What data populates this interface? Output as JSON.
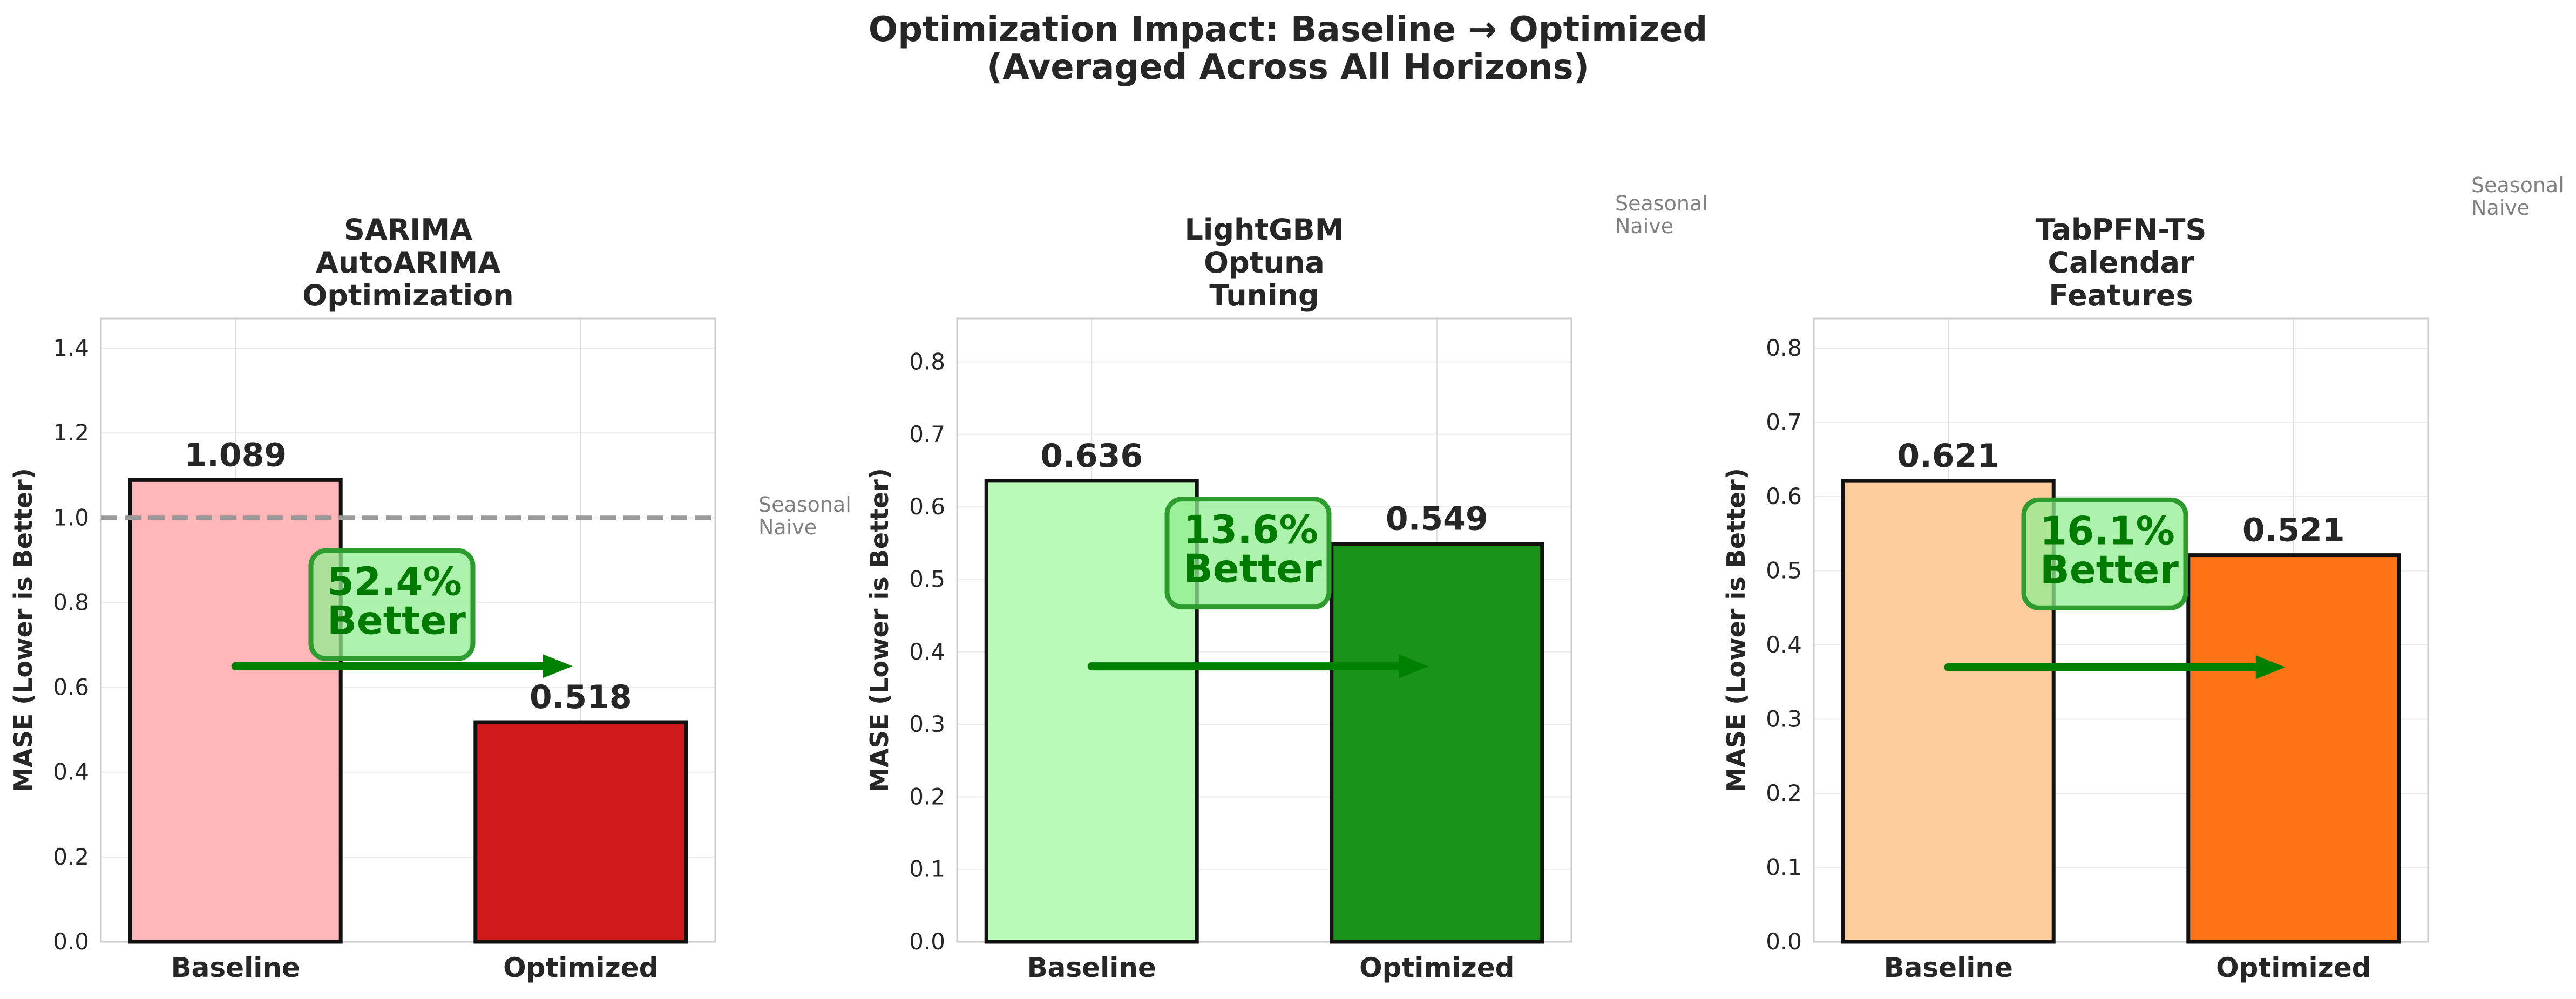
{
  "title_lines": [
    "Optimization Impact: Baseline → Optimized",
    "(Averaged Across All Horizons)"
  ],
  "ylabel": "MASE (Lower is Better)",
  "reference": {
    "label_lines": [
      "Seasonal",
      "Naive"
    ],
    "value": 1.0,
    "color": "#999999"
  },
  "arrow_color": "#008000",
  "chart_data": [
    {
      "type": "bar",
      "title_lines": [
        "SARIMA",
        "AutoARIMA",
        "Optimization"
      ],
      "categories": [
        "Baseline",
        "Optimized"
      ],
      "values": [
        1.089,
        0.518
      ],
      "value_labels": [
        "1.089",
        "0.518"
      ],
      "colors": [
        "#ffb6b9",
        "#d0191b"
      ],
      "ylim": [
        0,
        1.47
      ],
      "yticks": [
        "0.0",
        "0.2",
        "0.4",
        "0.6",
        "0.8",
        "1.0",
        "1.2",
        "1.4"
      ],
      "reference_line": 1.0,
      "improvement": [
        "52.4%",
        "Better"
      ],
      "arrow_y": 0.65,
      "xlabel": "",
      "ylabel": "MASE (Lower is Better)",
      "grid": true
    },
    {
      "type": "bar",
      "title_lines": [
        "LightGBM",
        "Optuna",
        "Tuning"
      ],
      "categories": [
        "Baseline",
        "Optimized"
      ],
      "values": [
        0.636,
        0.549
      ],
      "value_labels": [
        "0.636",
        "0.549"
      ],
      "colors": [
        "#b8fbb8",
        "#1a931a"
      ],
      "ylim": [
        0,
        0.86
      ],
      "yticks": [
        "0.0",
        "0.1",
        "0.2",
        "0.3",
        "0.4",
        "0.5",
        "0.6",
        "0.7",
        "0.8"
      ],
      "reference_line": 1.0,
      "improvement": [
        "13.6%",
        "Better"
      ],
      "arrow_y": 0.38,
      "xlabel": "",
      "ylabel": "MASE (Lower is Better)",
      "grid": true
    },
    {
      "type": "bar",
      "title_lines": [
        "TabPFN-TS",
        "Calendar",
        "Features"
      ],
      "categories": [
        "Baseline",
        "Optimized"
      ],
      "values": [
        0.621,
        0.521
      ],
      "value_labels": [
        "0.621",
        "0.521"
      ],
      "colors": [
        "#fdcd9e",
        "#ff7417"
      ],
      "ylim": [
        0,
        0.84
      ],
      "yticks": [
        "0.0",
        "0.1",
        "0.2",
        "0.3",
        "0.4",
        "0.5",
        "0.6",
        "0.7",
        "0.8"
      ],
      "reference_line": 1.0,
      "improvement": [
        "16.1%",
        "Better"
      ],
      "arrow_y": 0.37,
      "xlabel": "",
      "ylabel": "MASE (Lower is Better)",
      "grid": true
    }
  ]
}
